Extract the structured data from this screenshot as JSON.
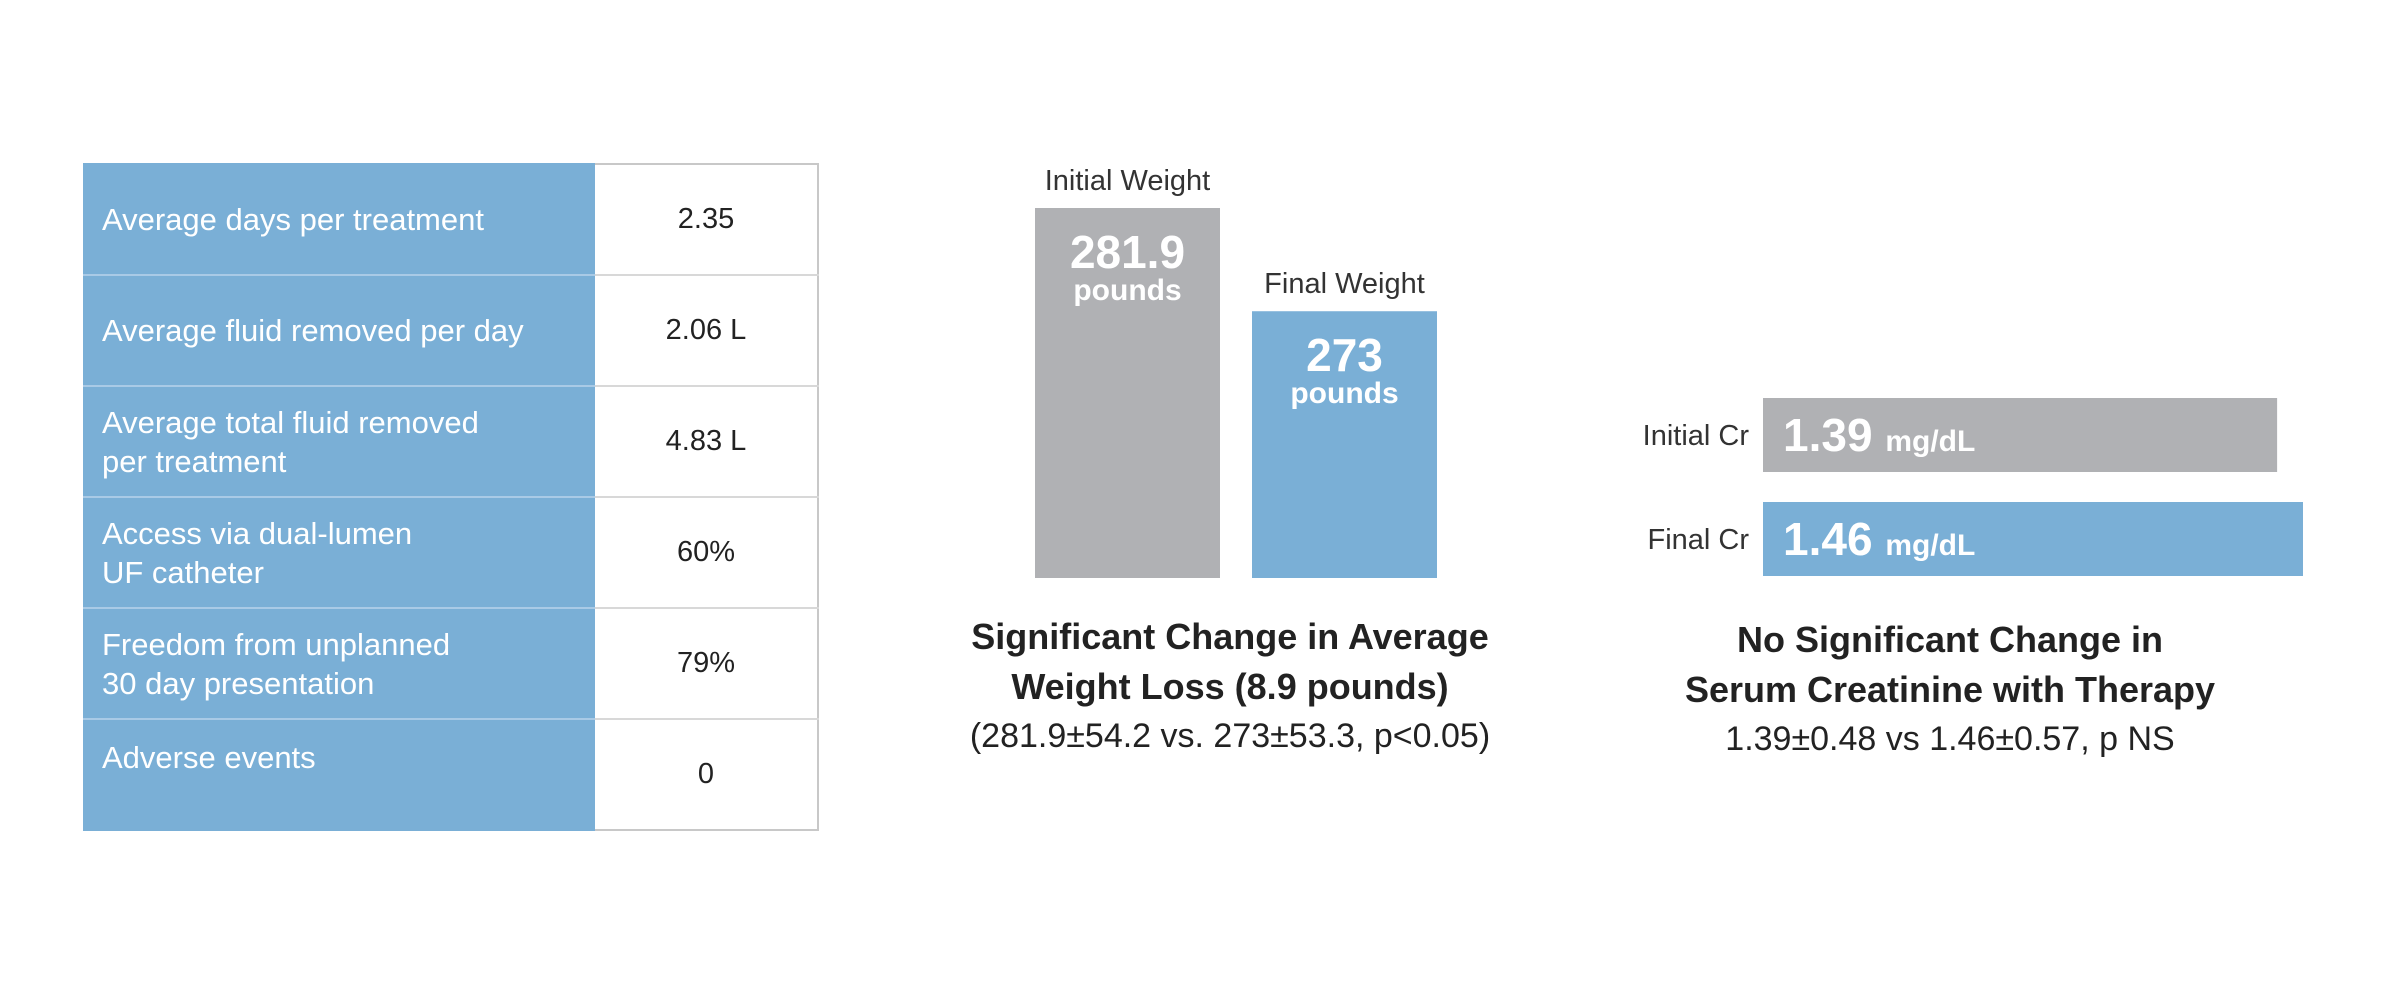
{
  "table": {
    "rows": [
      {
        "label": "Average days per treatment",
        "value": "2.35"
      },
      {
        "label": "Average fluid removed per day",
        "value": "2.06 L"
      },
      {
        "label": "Average total fluid removed\nper treatment",
        "value": "4.83 L"
      },
      {
        "label": "Access via dual-lumen\nUF catheter",
        "value": "60%"
      },
      {
        "label": "Freedom from unplanned\n30 day presentation",
        "value": "79%"
      },
      {
        "label": "Adverse events",
        "value": "0"
      }
    ]
  },
  "chart_data": [
    {
      "type": "bar",
      "orientation": "vertical",
      "categories": [
        "Initial Weight",
        "Final Weight"
      ],
      "values": [
        281.9,
        273
      ],
      "value_labels": [
        "281.9",
        "273"
      ],
      "unit_label": "pounds",
      "colors": [
        "#b0b1b4",
        "#7aafd6"
      ],
      "title": "Significant Change in Average\nWeight Loss (8.9 pounds)",
      "subtitle": "(281.9±54.2 vs. 273±53.3, p<0.05)"
    },
    {
      "type": "bar",
      "orientation": "horizontal",
      "categories": [
        "Initial Cr",
        "Final Cr"
      ],
      "values": [
        1.39,
        1.46
      ],
      "value_labels": [
        "1.39",
        "1.46"
      ],
      "unit_label": "mg/dL",
      "colors": [
        "#b0b1b4",
        "#7aafd6"
      ],
      "title": "No Significant Change in\nSerum Creatinine with Therapy",
      "subtitle": "1.39±0.48 vs 1.46±0.57, p NS"
    }
  ]
}
